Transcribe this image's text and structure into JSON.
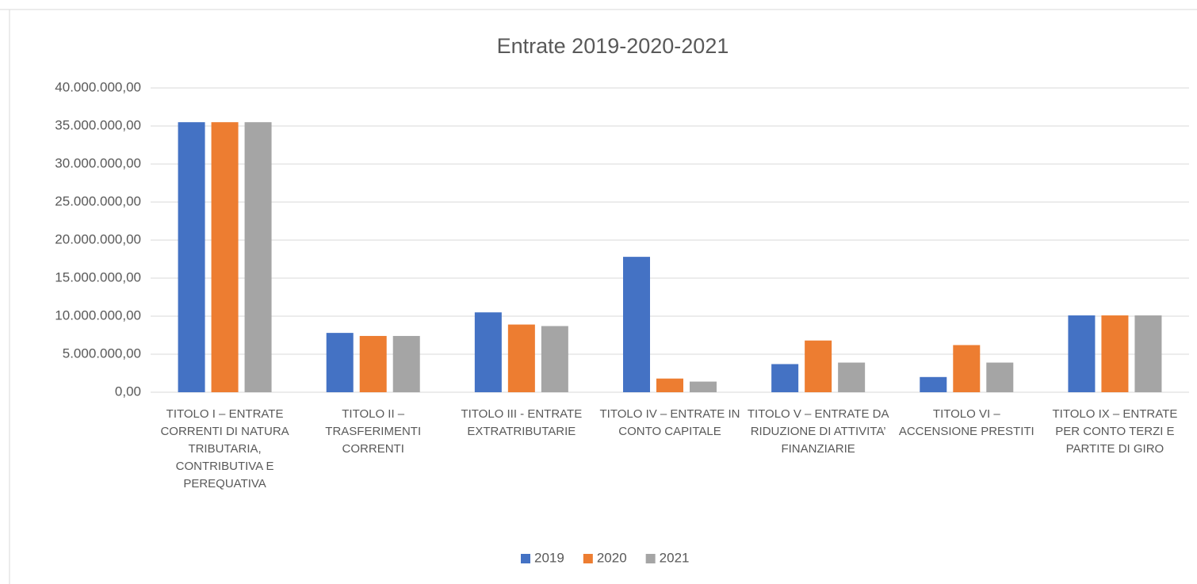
{
  "chart_data": {
    "type": "bar",
    "title": "Entrate 2019-2020-2021",
    "categories": [
      "TITOLO I – ENTRATE CORRENTI DI NATURA TRIBUTARIA, CONTRIBUTIVA E PEREQUATIVA",
      "TITOLO II – TRASFERIMENTI CORRENTI",
      "TITOLO III - ENTRATE EXTRATRIBUTARIE",
      "TITOLO IV – ENTRATE IN CONTO CAPITALE",
      "TITOLO V – ENTRATE DA RIDUZIONE DI ATTIVITA’ FINANZIARIE",
      "TITOLO VI – ACCENSIONE PRESTITI",
      "TITOLO IX – ENTRATE PER CONTO TERZI E PARTITE DI GIRO"
    ],
    "series": [
      {
        "name": "2019",
        "color": "#4472c4",
        "values": [
          35500000,
          7800000,
          10500000,
          17800000,
          3700000,
          2000000,
          10100000
        ]
      },
      {
        "name": "2020",
        "color": "#ed7d31",
        "values": [
          35500000,
          7400000,
          8900000,
          1800000,
          6800000,
          6200000,
          10100000
        ]
      },
      {
        "name": "2021",
        "color": "#a5a5a5",
        "values": [
          35500000,
          7400000,
          8700000,
          1400000,
          3900000,
          3900000,
          10100000
        ]
      }
    ],
    "ylim": [
      0,
      40000000
    ],
    "yticks": [
      {
        "value": 0,
        "label": "0,00"
      },
      {
        "value": 5000000,
        "label": "5.000.000,00"
      },
      {
        "value": 10000000,
        "label": "10.000.000,00"
      },
      {
        "value": 15000000,
        "label": "15.000.000,00"
      },
      {
        "value": 20000000,
        "label": "20.000.000,00"
      },
      {
        "value": 25000000,
        "label": "25.000.000,00"
      },
      {
        "value": 30000000,
        "label": "30.000.000,00"
      },
      {
        "value": 35000000,
        "label": "35.000.000,00"
      },
      {
        "value": 40000000,
        "label": "40.000.000,00"
      }
    ],
    "grid": true,
    "legend": "bottom"
  }
}
